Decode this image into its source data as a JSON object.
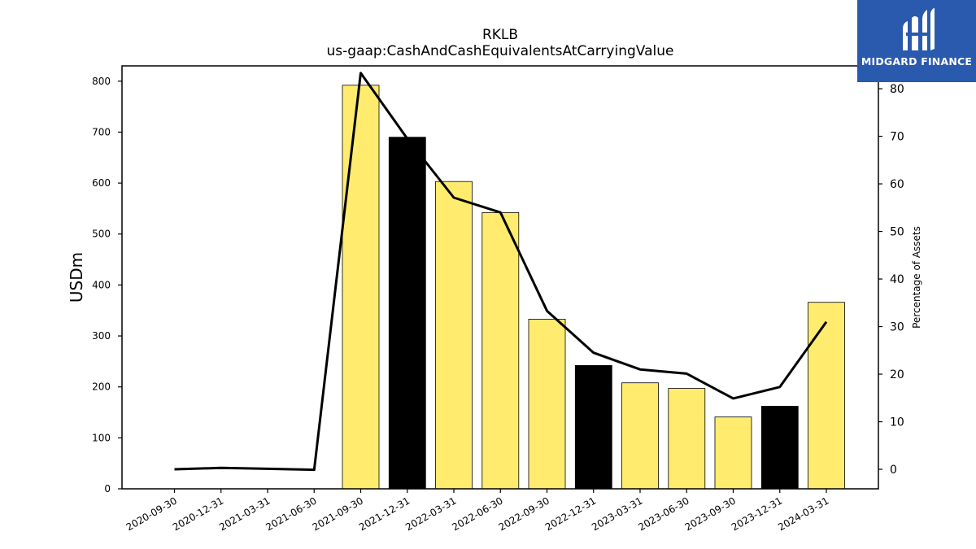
{
  "chart_data": {
    "type": "bar",
    "title": "RKLB",
    "subtitle": "us-gaap:CashAndCashEquivalentsAtCarryingValue",
    "ylabel": "USDm",
    "ylabel_right": "Percentage of Assets",
    "categories": [
      "2020-09-30",
      "2020-12-31",
      "2021-03-31",
      "2021-06-30",
      "2021-09-30",
      "2021-12-31",
      "2022-03-31",
      "2022-06-30",
      "2022-09-30",
      "2022-12-31",
      "2023-03-31",
      "2023-06-30",
      "2023-09-30",
      "2023-12-31",
      "2024-03-31"
    ],
    "series": [
      {
        "type": "bar",
        "axis": "left",
        "values": [
          null,
          null,
          null,
          null,
          792,
          690,
          603,
          542,
          333,
          242,
          208,
          197,
          141,
          162,
          366
        ],
        "colors": [
          null,
          null,
          null,
          null,
          "#ffec6e",
          "#000000",
          "#ffec6e",
          "#ffec6e",
          "#ffec6e",
          "#000000",
          "#ffec6e",
          "#ffec6e",
          "#ffec6e",
          "#000000",
          "#ffec6e"
        ]
      },
      {
        "type": "line",
        "axis": "right",
        "values": [
          0.0,
          0.3,
          0.1,
          -0.1,
          83.3,
          69.5,
          57.1,
          54.0,
          33.3,
          24.5,
          21.0,
          20.1,
          14.9,
          17.3,
          31.0
        ],
        "color": "#000000"
      }
    ],
    "ylim": [
      0,
      830
    ],
    "yticks": [
      0,
      100,
      200,
      300,
      400,
      500,
      600,
      700,
      800
    ],
    "ylim_right": [
      -4.1,
      84.8
    ],
    "yticks_right": [
      0,
      10,
      20,
      30,
      40,
      50,
      60,
      70,
      80
    ],
    "grid": false
  },
  "logo": {
    "text": "MIDGARD FINANCE",
    "color": "#2a5aad"
  }
}
